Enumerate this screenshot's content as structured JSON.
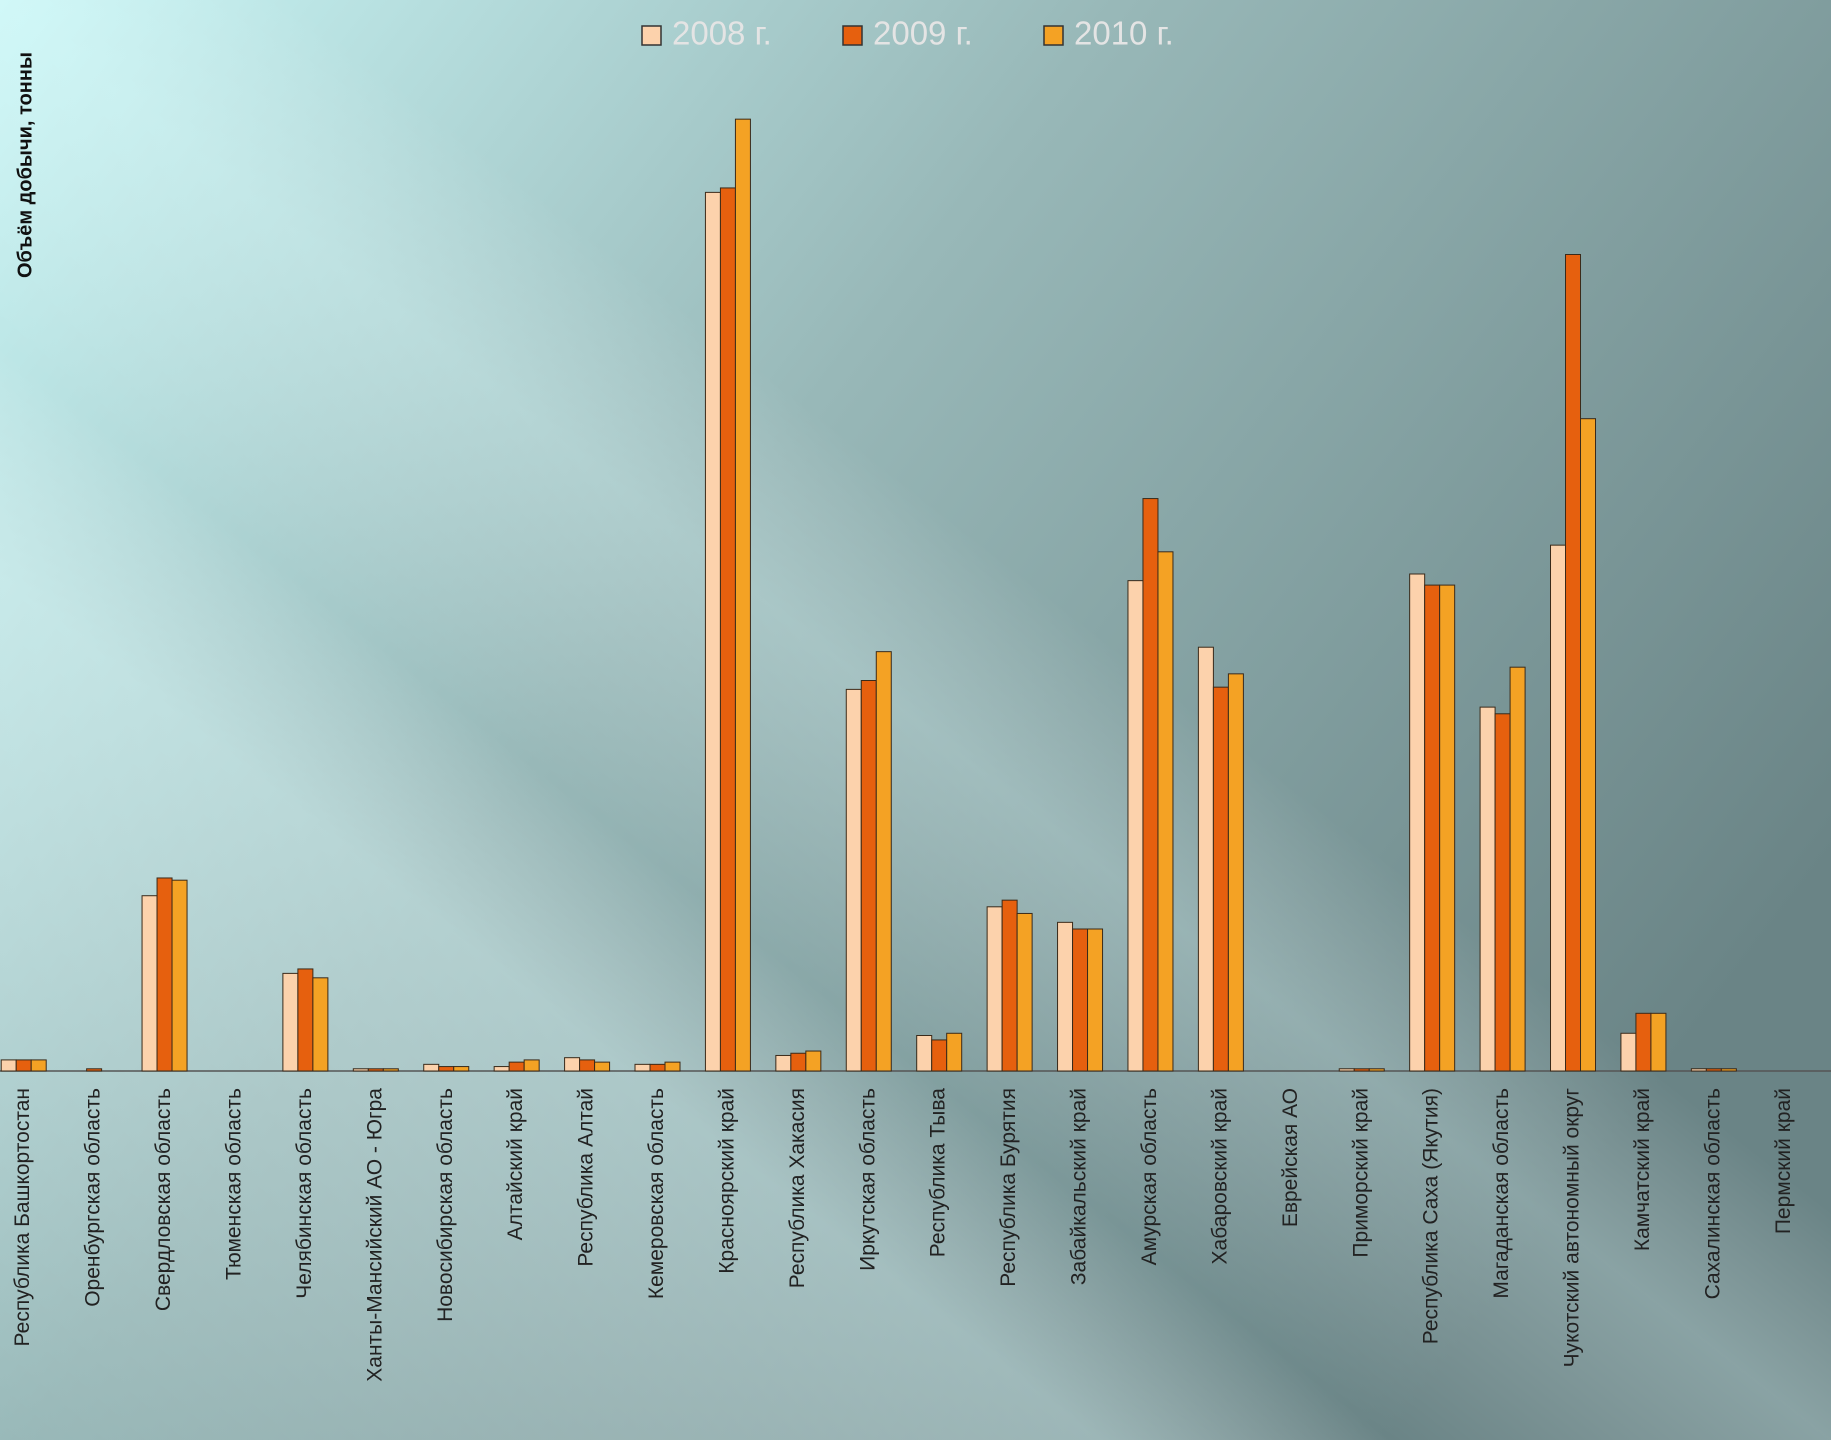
{
  "chart_data": {
    "type": "bar",
    "y_axis_label": "Объём добычи, тонны",
    "categories": [
      "Республика Башкортостан",
      "Оренбургская область",
      "Свердловская область",
      "Тюменская область",
      "Челябинская область",
      "Ханты-Мансийский АО - Югра",
      "Новосибирская область",
      "Алтайский край",
      "Республика Алтай",
      "Кемеровская область",
      "Красноярский край",
      "Республика Хакасия",
      "Иркутская область",
      "Республика Тыва",
      "Республика Бурятия",
      "Забайкальский край",
      "Амурская область",
      "Хабаровский край",
      "Еврейская АО",
      "Приморский край",
      "Республика Саха (Якутия)",
      "Магаданская область",
      "Чукотский автономный округ",
      "Камчатский край",
      "Сахалинская область",
      "Пермский край"
    ],
    "series": [
      {
        "name": "2008 г.",
        "color": "#fcd2ac",
        "values": [
          0.5,
          0,
          7.9,
          0,
          4.4,
          0.1,
          0.3,
          0.2,
          0.6,
          0.3,
          39.6,
          0.7,
          17.2,
          1.6,
          7.4,
          6.7,
          22.1,
          19.1,
          0,
          0.1,
          22.4,
          16.4,
          23.7,
          1.7,
          0.1,
          0
        ]
      },
      {
        "name": "2009 г.",
        "color": "#e6600e",
        "values": [
          0.5,
          0.1,
          8.7,
          0,
          4.6,
          0.1,
          0.2,
          0.4,
          0.5,
          0.3,
          39.8,
          0.8,
          17.6,
          1.4,
          7.7,
          6.4,
          25.8,
          17.3,
          0,
          0.1,
          21.9,
          16.1,
          36.8,
          2.6,
          0.1,
          0
        ]
      },
      {
        "name": "2010 г.",
        "color": "#f4a224",
        "values": [
          0.5,
          0,
          8.6,
          0,
          4.2,
          0.1,
          0.2,
          0.5,
          0.4,
          0.4,
          42.9,
          0.9,
          18.9,
          1.7,
          7.1,
          6.4,
          23.4,
          17.9,
          0,
          0.1,
          21.9,
          18.2,
          29.4,
          2.6,
          0.1,
          0
        ]
      }
    ],
    "ylim": [
      0,
      48
    ],
    "legend": "top"
  }
}
